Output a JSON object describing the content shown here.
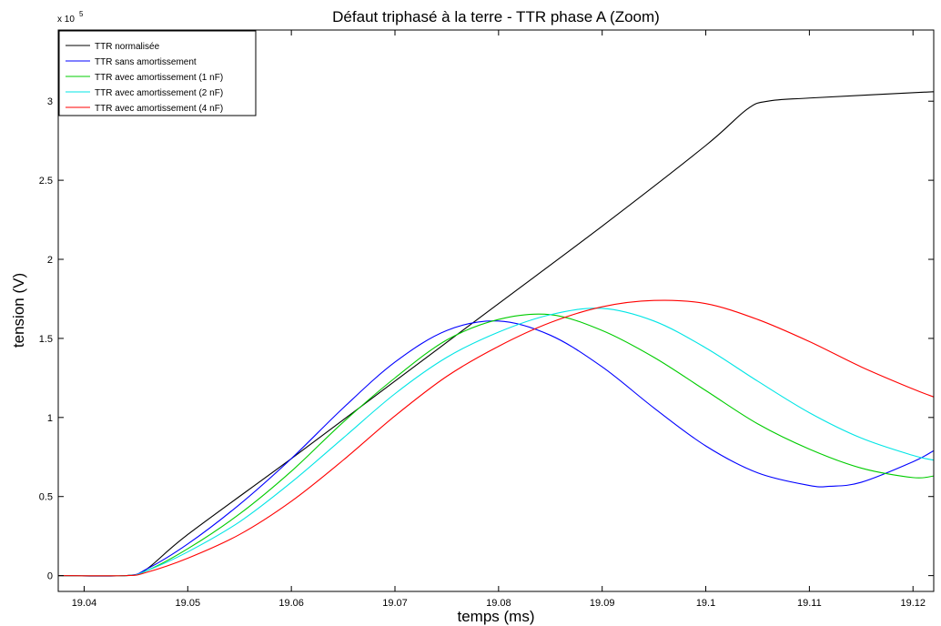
{
  "chart_data": {
    "type": "line",
    "title": "Défaut triphasé à la terre - TTR phase A (Zoom)",
    "xlabel": "temps (ms)",
    "ylabel": "tension (V)",
    "y_exponent_label": "x 10",
    "y_exponent_power": "5",
    "xlim": [
      19.0375,
      19.122
    ],
    "ylim": [
      -0.1,
      3.45
    ],
    "y_scale_factor": 100000,
    "xticks": [
      19.04,
      19.05,
      19.06,
      19.07,
      19.08,
      19.09,
      19.1,
      19.11,
      19.12
    ],
    "xtick_labels": [
      "19.04",
      "19.05",
      "19.06",
      "19.07",
      "19.08",
      "19.09",
      "19.1",
      "19.11",
      "19.12"
    ],
    "yticks": [
      0,
      0.5,
      1,
      1.5,
      2,
      2.5,
      3
    ],
    "ytick_labels": [
      "0",
      "0.5",
      "1",
      "1.5",
      "2",
      "2.5",
      "3"
    ],
    "legend_position": "top-left",
    "grid": false,
    "series": [
      {
        "name": "TTR normalisée",
        "color": "#000000",
        "x": [
          19.0375,
          19.044,
          19.046,
          19.05,
          19.06,
          19.07,
          19.08,
          19.09,
          19.1,
          19.104,
          19.106,
          19.11,
          19.122
        ],
        "y": [
          0,
          0,
          0.04,
          0.26,
          0.74,
          1.23,
          1.72,
          2.21,
          2.72,
          2.95,
          3.0,
          3.02,
          3.06
        ]
      },
      {
        "name": "TTR sans amortissement",
        "color": "#0000ff",
        "x": [
          19.0375,
          19.044,
          19.046,
          19.05,
          19.055,
          19.06,
          19.065,
          19.07,
          19.075,
          19.08,
          19.085,
          19.09,
          19.095,
          19.1,
          19.105,
          19.11,
          19.112,
          19.115,
          19.12,
          19.122
        ],
        "y": [
          0,
          0,
          0.04,
          0.2,
          0.45,
          0.74,
          1.06,
          1.35,
          1.55,
          1.61,
          1.52,
          1.32,
          1.06,
          0.82,
          0.65,
          0.57,
          0.565,
          0.59,
          0.72,
          0.79
        ]
      },
      {
        "name": "TTR avec amortissement (1 nF)",
        "color": "#00cc00",
        "x": [
          19.0375,
          19.044,
          19.046,
          19.05,
          19.055,
          19.06,
          19.065,
          19.07,
          19.075,
          19.08,
          19.085,
          19.09,
          19.095,
          19.1,
          19.105,
          19.11,
          19.115,
          19.12,
          19.122
        ],
        "y": [
          0,
          0,
          0.03,
          0.17,
          0.39,
          0.66,
          0.97,
          1.25,
          1.49,
          1.62,
          1.65,
          1.55,
          1.38,
          1.17,
          0.96,
          0.8,
          0.68,
          0.62,
          0.63
        ]
      },
      {
        "name": "TTR avec amortissement (2 nF)",
        "color": "#00e5e5",
        "x": [
          19.0375,
          19.044,
          19.046,
          19.05,
          19.055,
          19.06,
          19.065,
          19.07,
          19.075,
          19.08,
          19.085,
          19.09,
          19.095,
          19.1,
          19.105,
          19.11,
          19.115,
          19.12,
          19.122
        ],
        "y": [
          0,
          0,
          0.03,
          0.15,
          0.34,
          0.59,
          0.87,
          1.15,
          1.38,
          1.54,
          1.65,
          1.69,
          1.61,
          1.44,
          1.23,
          1.03,
          0.87,
          0.76,
          0.73
        ]
      },
      {
        "name": "TTR avec amortissement (4 nF)",
        "color": "#ff0000",
        "x": [
          19.0375,
          19.044,
          19.046,
          19.05,
          19.055,
          19.06,
          19.065,
          19.07,
          19.075,
          19.08,
          19.085,
          19.09,
          19.095,
          19.1,
          19.105,
          19.11,
          19.115,
          19.12,
          19.122
        ],
        "y": [
          0,
          0,
          0.02,
          0.11,
          0.26,
          0.47,
          0.73,
          1.01,
          1.26,
          1.45,
          1.6,
          1.7,
          1.74,
          1.72,
          1.62,
          1.48,
          1.32,
          1.18,
          1.13
        ]
      }
    ]
  }
}
